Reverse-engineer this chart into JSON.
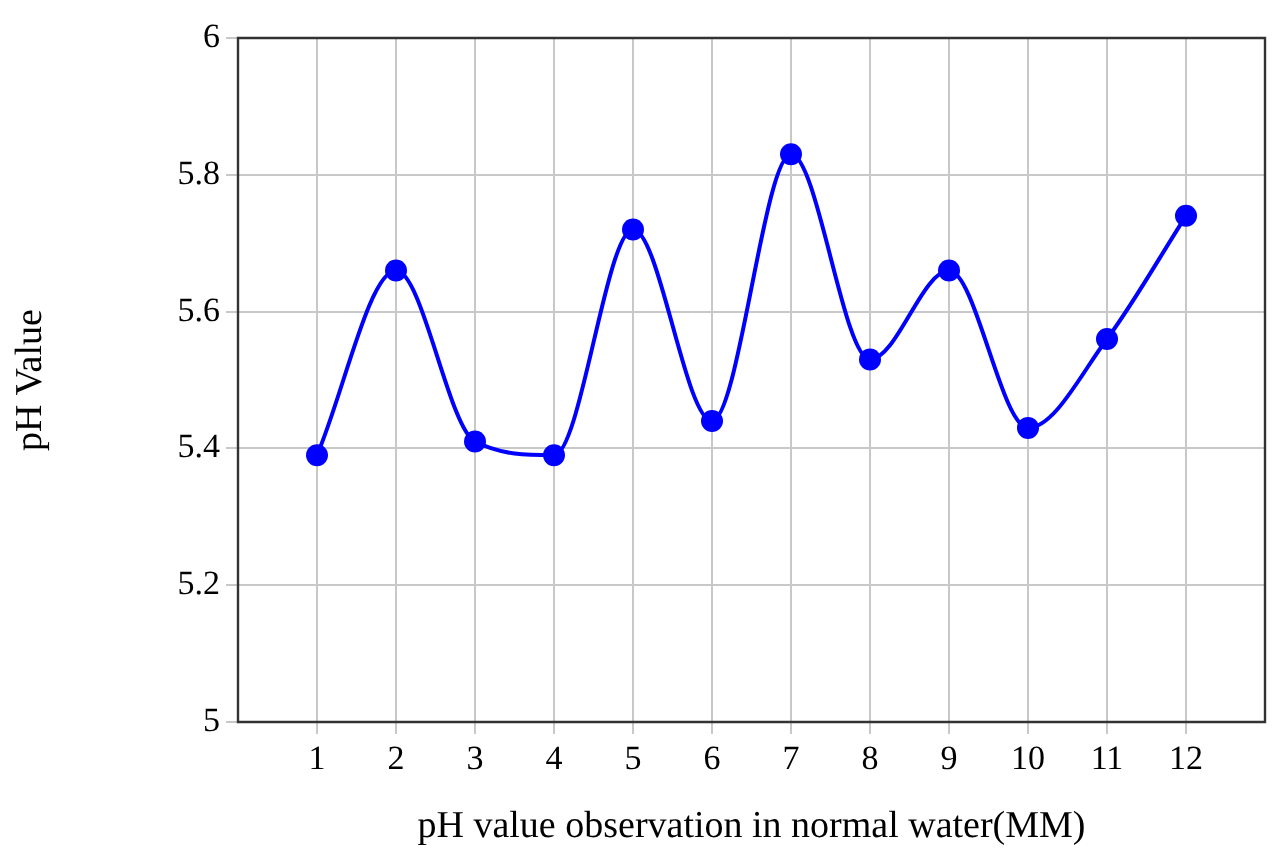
{
  "chart_data": {
    "type": "line",
    "xlabel": "pH value observation in normal water(MM)",
    "ylabel": "pH Value",
    "x": [
      1,
      2,
      3,
      4,
      5,
      6,
      7,
      8,
      9,
      10,
      11,
      12
    ],
    "series": [
      {
        "color": "#0000ff",
        "values": [
          5.39,
          5.66,
          5.41,
          5.39,
          5.72,
          5.44,
          5.83,
          5.53,
          5.66,
          5.43,
          5.56,
          5.74
        ]
      }
    ],
    "xlim": [
      0,
      13
    ],
    "xticks": [
      1,
      2,
      3,
      4,
      5,
      6,
      7,
      8,
      9,
      10,
      11,
      12
    ],
    "ylim": [
      5,
      6
    ],
    "yticks": [
      5,
      5.2,
      5.4,
      5.6,
      5.8,
      6
    ],
    "grid": true,
    "legend": false,
    "marker": "circle",
    "line_style": "solid"
  }
}
